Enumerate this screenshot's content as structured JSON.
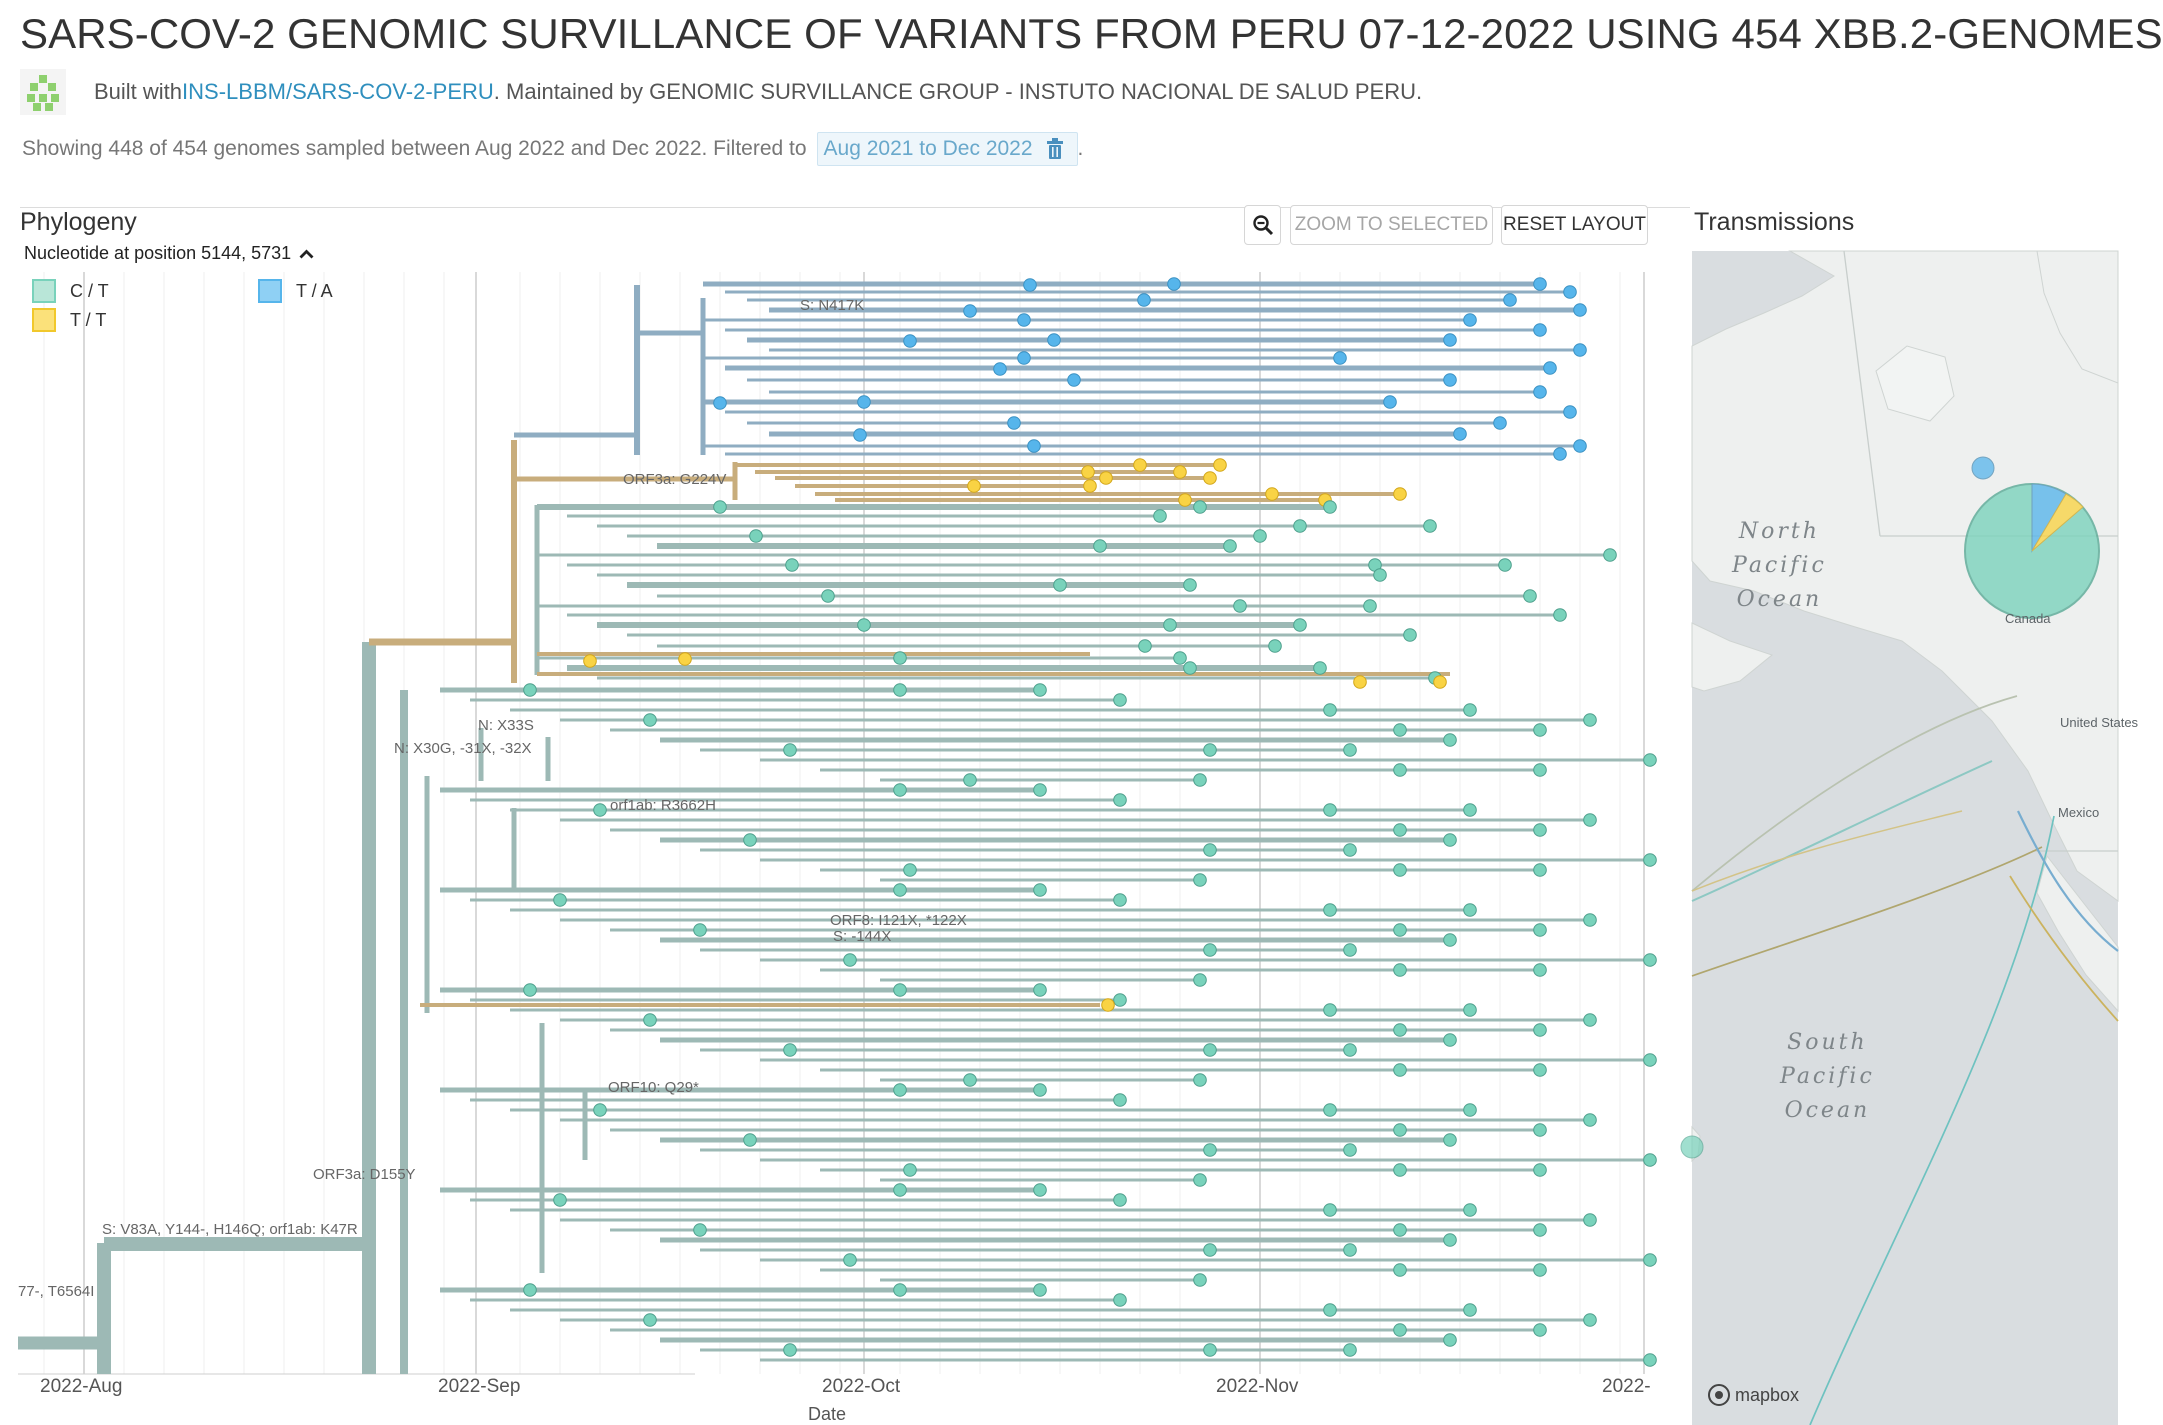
{
  "header": {
    "title": "SARS-COV-2 GENOMIC SURVILLANCE OF VARIANTS FROM PERU 07-12-2022 USING 454 XBB.2-GENOMES",
    "built_prefix": "Built with ",
    "built_link": "INS-LBBM/SARS-COV-2-PERU",
    "built_suffix": ". Maintained by GENOMIC SURVILLANCE GROUP - INSTUTO NACIONAL DE SALUD PERU."
  },
  "summary": {
    "text": "Showing 448 of 454 genomes sampled between Aug 2022 and Dec 2022. Filtered to",
    "filter": "Aug 2021 to Dec 2022",
    "period": "."
  },
  "phylogeny": {
    "title": "Phylogeny",
    "controls": {
      "zoom_icon": "zoom-out-icon",
      "zoom_selected": "ZOOM TO SELECTED",
      "reset_layout": "RESET LAYOUT"
    },
    "legend": {
      "title": "Nucleotide at position 5144, 5731",
      "toggle_icon": "chevron-up-icon",
      "items": [
        {
          "label": "C / T",
          "color": "#79d2bb"
        },
        {
          "label": "T / A",
          "color": "#56b5eb"
        },
        {
          "label": "T / T",
          "color": "#f9d344"
        }
      ]
    },
    "branch_labels": [
      "S: N417K",
      "ORF3a: G224V",
      "N: X33S",
      "N: X30G, -31X, -32X",
      "orf1ab: R3662H",
      "ORF8: I121X, *122X",
      "S: -144X",
      "ORF10: Q29*",
      "ORF3a: D155Y",
      "S: V83A, Y144-, H146Q; orf1ab: K47R",
      "77-, T6564I"
    ],
    "axis": {
      "title": "Date",
      "ticks": [
        "2022-Aug",
        "2022-Sep",
        "2022-Oct",
        "2022-Nov",
        "2022-"
      ]
    },
    "tree_colors": {
      "branch_ct": "#9db9b5",
      "branch_ta": "#8fadc2",
      "branch_tt": "#c8ad7c",
      "tip_ct": "#79d2bb",
      "tip_ta": "#56b5eb",
      "tip_tt": "#f9d344"
    }
  },
  "transmissions": {
    "title": "Transmissions",
    "oceans": [
      {
        "name": "North Pacific Ocean",
        "lines": [
          "North",
          "Pacific",
          "Ocean"
        ]
      },
      {
        "name": "South Pacific Ocean",
        "lines": [
          "South",
          "Pacific",
          "Ocean"
        ]
      }
    ],
    "places": [
      "Canada",
      "United States",
      "Mexico"
    ],
    "attribution": "mapbox",
    "colors": {
      "map_bg": "#d9dde0",
      "land": "#eef0ef",
      "deme": "#79d2bb",
      "blue": "#56b5eb",
      "yellow": "#f9d344",
      "route": "#8dc8c3"
    }
  }
}
